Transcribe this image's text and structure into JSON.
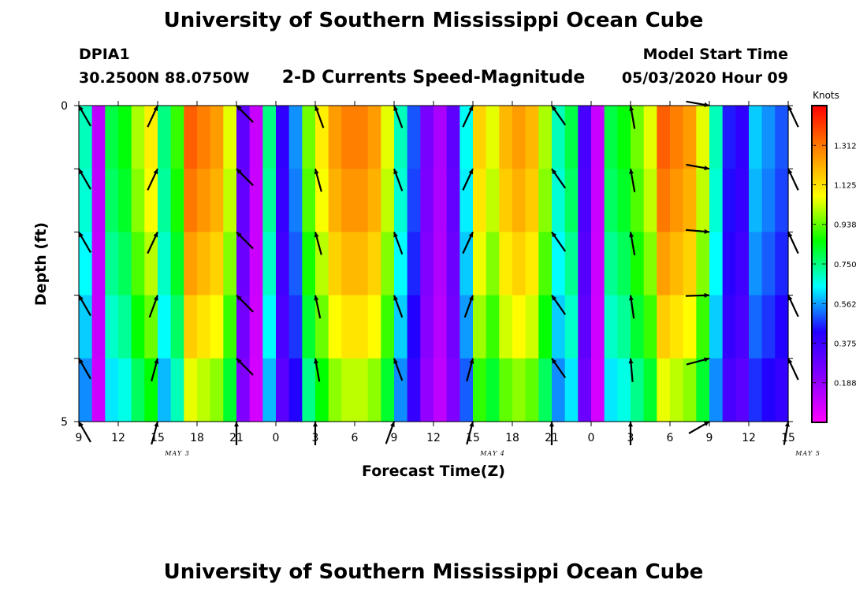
{
  "header": {
    "title": "University of Southern Mississippi Ocean Cube",
    "station": "DPIA1",
    "coords": "30.2500N 88.0750W",
    "subtitle": "2-D Currents Speed-Magnitude",
    "model_label": "Model Start Time",
    "model_time": "05/03/2020 Hour 09"
  },
  "footer": {
    "title": "University of Southern Mississippi Ocean Cube"
  },
  "colorbar": {
    "unit": "Knots",
    "tick_labels": [
      "0.188",
      "0.375",
      "0.562",
      "0.750",
      "0.938",
      "1.125",
      "1.312"
    ],
    "range": [
      0,
      1.5
    ],
    "colors": [
      "#ff00ff",
      "#8800ff",
      "#2200ff",
      "#00ffff",
      "#00ff00",
      "#ffff00",
      "#ff8800",
      "#ff0000"
    ]
  },
  "chart_data": {
    "type": "heatmap",
    "title": "2-D Currents Speed-Magnitude",
    "xlabel": "Forecast Time(Z)",
    "ylabel": "Depth (ft)",
    "x_tick_labels": [
      "9",
      "12",
      "15",
      "18",
      "21",
      "0",
      "3",
      "6",
      "9",
      "12",
      "15",
      "18",
      "21",
      "0",
      "3",
      "6",
      "9",
      "12",
      "15"
    ],
    "date_labels": [
      {
        "text": "MAY 3",
        "hour_index": 7.5
      },
      {
        "text": "MAY 4",
        "hour_index": 31.5
      },
      {
        "text": "MAY 5",
        "hour_index": 55.5
      }
    ],
    "y_tick_labels": [
      "0",
      "5"
    ],
    "xlim": [
      0,
      54
    ],
    "ylim": [
      0,
      5
    ],
    "depth_layers": [
      0,
      1,
      2,
      3,
      4
    ],
    "speed_by_hour": [
      0.7,
      0.12,
      0.8,
      0.85,
      1.0,
      1.1,
      0.75,
      0.9,
      1.35,
      1.3,
      1.25,
      1.05,
      0.3,
      0.1,
      0.75,
      0.4,
      0.55,
      0.95,
      1.1,
      1.25,
      1.3,
      1.3,
      1.25,
      1.05,
      0.7,
      0.5,
      0.25,
      0.15,
      0.3,
      0.65,
      1.15,
      1.05,
      1.2,
      1.25,
      1.2,
      1.0,
      0.7,
      0.8,
      0.35,
      0.1,
      0.8,
      0.85,
      0.95,
      1.05,
      1.35,
      1.3,
      1.25,
      1.05,
      0.7,
      0.45,
      0.4,
      0.6,
      0.55,
      0.5,
      0.7
    ],
    "depth_scale": [
      1.0,
      0.97,
      0.92,
      0.86,
      0.78
    ],
    "arrow_hours": [
      0,
      6,
      12,
      18,
      24,
      30,
      36,
      42,
      48,
      54
    ],
    "arrows_direction_deg": [
      [
        -30,
        -30,
        -30,
        -30,
        -30,
        -30
      ],
      [
        25,
        25,
        25,
        20,
        15,
        15
      ],
      [
        -45,
        -45,
        -45,
        -45,
        -45,
        0
      ],
      [
        -20,
        -15,
        -15,
        -12,
        -10,
        0
      ],
      [
        -20,
        -20,
        -20,
        -20,
        -20,
        20
      ],
      [
        25,
        25,
        25,
        20,
        15,
        15
      ],
      [
        -35,
        -35,
        -35,
        -35,
        -35,
        0
      ],
      [
        -10,
        -10,
        -10,
        -8,
        -5,
        0
      ],
      [
        100,
        100,
        95,
        88,
        75,
        60
      ],
      [
        -25,
        -25,
        -25,
        -25,
        -25,
        10
      ]
    ]
  }
}
